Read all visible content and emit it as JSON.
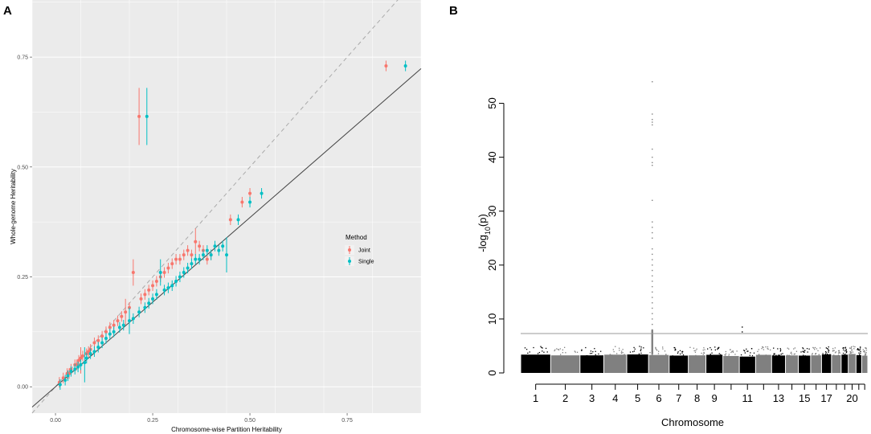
{
  "chart_data": [
    {
      "panel": "A",
      "type": "scatter",
      "xlabel": "Chromosome-wise Partition Heritability",
      "ylabel": "Whole-genome Heritability",
      "xlim": [
        -0.06,
        0.94
      ],
      "ylim": [
        -0.06,
        0.88
      ],
      "x_ticks": [
        0.0,
        0.25,
        0.5,
        0.75
      ],
      "x_tick_labels": [
        "0.00",
        "0.25",
        "0.50",
        "0.75"
      ],
      "y_ticks": [
        0.0,
        0.25,
        0.5,
        0.75
      ],
      "y_tick_labels": [
        "0.00",
        "0.25",
        "0.50",
        "0.75"
      ],
      "grid": true,
      "background": "#ebebeb",
      "reference_lines": [
        {
          "name": "identity",
          "style": "dashed",
          "color": "#aaaaaa",
          "intercept": 0,
          "slope": 1
        },
        {
          "name": "fit",
          "style": "solid",
          "color": "#444444",
          "intercept": 0,
          "slope": 0.77
        }
      ],
      "legend": {
        "title": "Method",
        "position": "right",
        "entries": [
          "Joint",
          "Single"
        ]
      },
      "series": [
        {
          "name": "Joint",
          "color": "#f8766d",
          "points": [
            {
              "x": 0.01,
              "y": 0.01
            },
            {
              "x": 0.02,
              "y": 0.02
            },
            {
              "x": 0.03,
              "y": 0.03
            },
            {
              "x": 0.035,
              "y": 0.03
            },
            {
              "x": 0.04,
              "y": 0.04
            },
            {
              "x": 0.05,
              "y": 0.05
            },
            {
              "x": 0.055,
              "y": 0.05
            },
            {
              "x": 0.06,
              "y": 0.06
            },
            {
              "x": 0.065,
              "y": 0.065,
              "lo": 0.03,
              "hi": 0.09
            },
            {
              "x": 0.07,
              "y": 0.07
            },
            {
              "x": 0.08,
              "y": 0.075
            },
            {
              "x": 0.085,
              "y": 0.08
            },
            {
              "x": 0.09,
              "y": 0.085
            },
            {
              "x": 0.1,
              "y": 0.1
            },
            {
              "x": 0.11,
              "y": 0.105
            },
            {
              "x": 0.12,
              "y": 0.115
            },
            {
              "x": 0.13,
              "y": 0.125
            },
            {
              "x": 0.14,
              "y": 0.135
            },
            {
              "x": 0.15,
              "y": 0.14
            },
            {
              "x": 0.16,
              "y": 0.15
            },
            {
              "x": 0.17,
              "y": 0.16
            },
            {
              "x": 0.18,
              "y": 0.17,
              "lo": 0.14,
              "hi": 0.2
            },
            {
              "x": 0.19,
              "y": 0.18
            },
            {
              "x": 0.2,
              "y": 0.26,
              "lo": 0.23,
              "hi": 0.29
            },
            {
              "x": 0.22,
              "y": 0.2
            },
            {
              "x": 0.23,
              "y": 0.21
            },
            {
              "x": 0.24,
              "y": 0.22
            },
            {
              "x": 0.25,
              "y": 0.23
            },
            {
              "x": 0.26,
              "y": 0.24
            },
            {
              "x": 0.27,
              "y": 0.25
            },
            {
              "x": 0.28,
              "y": 0.26
            },
            {
              "x": 0.29,
              "y": 0.27
            },
            {
              "x": 0.3,
              "y": 0.28
            },
            {
              "x": 0.31,
              "y": 0.29
            },
            {
              "x": 0.32,
              "y": 0.29
            },
            {
              "x": 0.33,
              "y": 0.3
            },
            {
              "x": 0.34,
              "y": 0.31
            },
            {
              "x": 0.35,
              "y": 0.3
            },
            {
              "x": 0.36,
              "y": 0.33,
              "lo": 0.3,
              "hi": 0.36
            },
            {
              "x": 0.37,
              "y": 0.32
            },
            {
              "x": 0.38,
              "y": 0.31
            },
            {
              "x": 0.39,
              "y": 0.29
            },
            {
              "x": 0.4,
              "y": 0.3
            },
            {
              "x": 0.45,
              "y": 0.38
            },
            {
              "x": 0.48,
              "y": 0.42
            },
            {
              "x": 0.5,
              "y": 0.44
            },
            {
              "x": 0.215,
              "y": 0.615,
              "lo": 0.55,
              "hi": 0.68
            },
            {
              "x": 0.85,
              "y": 0.73
            }
          ]
        },
        {
          "name": "Single",
          "color": "#00bfc4",
          "points": [
            {
              "x": 0.012,
              "y": 0.005
            },
            {
              "x": 0.025,
              "y": 0.015
            },
            {
              "x": 0.032,
              "y": 0.025
            },
            {
              "x": 0.04,
              "y": 0.035
            },
            {
              "x": 0.05,
              "y": 0.04
            },
            {
              "x": 0.058,
              "y": 0.045
            },
            {
              "x": 0.065,
              "y": 0.05
            },
            {
              "x": 0.075,
              "y": 0.055,
              "lo": 0.01,
              "hi": 0.09
            },
            {
              "x": 0.08,
              "y": 0.065
            },
            {
              "x": 0.09,
              "y": 0.075
            },
            {
              "x": 0.1,
              "y": 0.08
            },
            {
              "x": 0.11,
              "y": 0.09
            },
            {
              "x": 0.12,
              "y": 0.1
            },
            {
              "x": 0.13,
              "y": 0.11
            },
            {
              "x": 0.14,
              "y": 0.12
            },
            {
              "x": 0.15,
              "y": 0.125
            },
            {
              "x": 0.165,
              "y": 0.135
            },
            {
              "x": 0.175,
              "y": 0.14
            },
            {
              "x": 0.19,
              "y": 0.15,
              "lo": 0.12,
              "hi": 0.18
            },
            {
              "x": 0.2,
              "y": 0.155
            },
            {
              "x": 0.215,
              "y": 0.17
            },
            {
              "x": 0.23,
              "y": 0.18
            },
            {
              "x": 0.24,
              "y": 0.19
            },
            {
              "x": 0.25,
              "y": 0.2
            },
            {
              "x": 0.26,
              "y": 0.21
            },
            {
              "x": 0.27,
              "y": 0.26,
              "lo": 0.23,
              "hi": 0.29
            },
            {
              "x": 0.28,
              "y": 0.22
            },
            {
              "x": 0.29,
              "y": 0.225
            },
            {
              "x": 0.3,
              "y": 0.23
            },
            {
              "x": 0.31,
              "y": 0.24
            },
            {
              "x": 0.32,
              "y": 0.25
            },
            {
              "x": 0.33,
              "y": 0.26
            },
            {
              "x": 0.34,
              "y": 0.27
            },
            {
              "x": 0.35,
              "y": 0.28
            },
            {
              "x": 0.36,
              "y": 0.29
            },
            {
              "x": 0.37,
              "y": 0.29
            },
            {
              "x": 0.38,
              "y": 0.3
            },
            {
              "x": 0.39,
              "y": 0.31
            },
            {
              "x": 0.4,
              "y": 0.3
            },
            {
              "x": 0.41,
              "y": 0.32
            },
            {
              "x": 0.42,
              "y": 0.31
            },
            {
              "x": 0.43,
              "y": 0.32
            },
            {
              "x": 0.44,
              "y": 0.3,
              "lo": 0.26,
              "hi": 0.34
            },
            {
              "x": 0.47,
              "y": 0.38
            },
            {
              "x": 0.5,
              "y": 0.42
            },
            {
              "x": 0.53,
              "y": 0.44
            },
            {
              "x": 0.235,
              "y": 0.615,
              "lo": 0.55,
              "hi": 0.68
            },
            {
              "x": 0.9,
              "y": 0.73
            }
          ]
        }
      ]
    },
    {
      "panel": "B",
      "type": "manhattan",
      "xlabel": "Chromosome",
      "ylabel": "-log10(p)",
      "ylabel_main": "-log",
      "ylabel_sub": "10",
      "ylabel_paren": "(p)",
      "ylim": [
        0,
        55
      ],
      "y_ticks": [
        0,
        10,
        20,
        30,
        40,
        50
      ],
      "y_tick_labels": [
        "0",
        "10",
        "20",
        "30",
        "40",
        "50"
      ],
      "x_tick_labels": [
        "1",
        "2",
        "3",
        "4",
        "5",
        "6",
        "7",
        "8",
        "9",
        "11",
        "13",
        "15",
        "17",
        "20"
      ],
      "threshold": 7.3,
      "colors": {
        "odd": "#000000",
        "even": "#808080",
        "threshold": "#999999"
      },
      "chromosome_lengths": [
        249,
        243,
        198,
        190,
        181,
        171,
        159,
        146,
        141,
        136,
        135,
        133,
        115,
        107,
        102,
        90,
        83,
        80,
        59,
        64,
        47,
        51
      ],
      "peaks": [
        {
          "chromosome": 6,
          "values": [
            54,
            48,
            47,
            46.5,
            46,
            41.5,
            40,
            39,
            38.5,
            32,
            28,
            27,
            26,
            25,
            23,
            22,
            21,
            20,
            19,
            18,
            17,
            16,
            15,
            14,
            13,
            12,
            11,
            10,
            9,
            8
          ]
        },
        {
          "chromosome": 11,
          "values": [
            8.5,
            7.6
          ]
        }
      ]
    }
  ]
}
